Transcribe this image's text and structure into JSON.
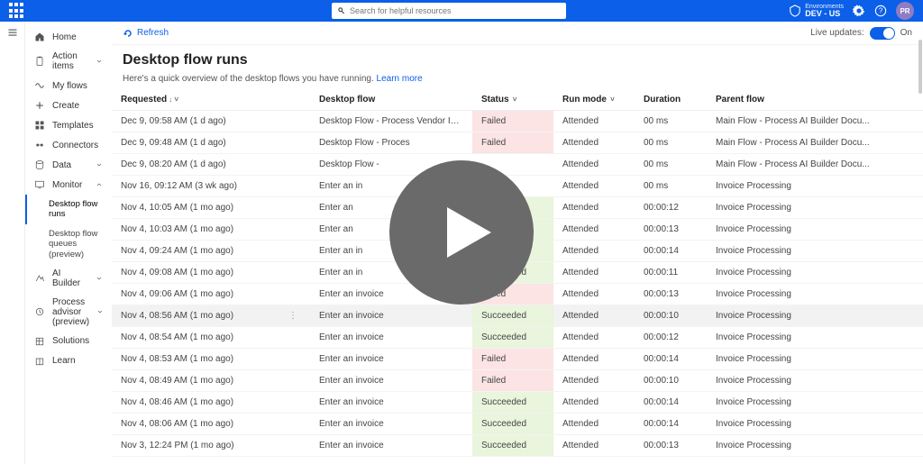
{
  "banner": {
    "search_placeholder": "Search for helpful resources",
    "env_label": "Environments",
    "env_name": "DEV - US",
    "avatar_initials": "PR"
  },
  "sidebar": {
    "items": [
      {
        "label": "Home",
        "icon": "home"
      },
      {
        "label": "Action items",
        "icon": "clipboard",
        "expandable": true
      },
      {
        "label": "My flows",
        "icon": "flows"
      },
      {
        "label": "Create",
        "icon": "plus"
      },
      {
        "label": "Templates",
        "icon": "templates"
      },
      {
        "label": "Connectors",
        "icon": "connectors"
      },
      {
        "label": "Data",
        "icon": "data",
        "expandable": true
      },
      {
        "label": "Monitor",
        "icon": "monitor",
        "expandable": true,
        "expanded": true,
        "subs": [
          {
            "label": "Desktop flow runs",
            "active": true
          },
          {
            "label": "Desktop flow queues (preview)"
          }
        ]
      },
      {
        "label": "AI Builder",
        "icon": "ai",
        "expandable": true
      },
      {
        "label": "Process advisor (preview)",
        "icon": "process",
        "expandable": true
      },
      {
        "label": "Solutions",
        "icon": "solutions"
      },
      {
        "label": "Learn",
        "icon": "learn"
      }
    ]
  },
  "toolbar": {
    "refresh_label": "Refresh",
    "live_updates_label": "Live updates:",
    "live_state": "On"
  },
  "page": {
    "title": "Desktop flow runs",
    "subtitle_prefix": "Here's a quick overview of the desktop flows you have running. ",
    "learn_more": "Learn more"
  },
  "table": {
    "columns": {
      "requested": "Requested",
      "desktop_flow": "Desktop flow",
      "status": "Status",
      "run_mode": "Run mode",
      "duration": "Duration",
      "parent_flow": "Parent flow"
    },
    "rows": [
      {
        "requested": "Dec 9, 09:58 AM (1 d ago)",
        "flow": "Desktop Flow - Process Vendor Invoices",
        "status": "Failed",
        "mode": "Attended",
        "duration": "00 ms",
        "parent": "Main Flow - Process AI Builder Docu..."
      },
      {
        "requested": "Dec 9, 09:48 AM (1 d ago)",
        "flow": "Desktop Flow - Proces",
        "status": "Failed",
        "mode": "Attended",
        "duration": "00 ms",
        "parent": "Main Flow - Process AI Builder Docu..."
      },
      {
        "requested": "Dec 9, 08:20 AM (1 d ago)",
        "flow": "Desktop Flow -",
        "status": "",
        "mode": "Attended",
        "duration": "00 ms",
        "parent": "Main Flow - Process AI Builder Docu..."
      },
      {
        "requested": "Nov 16, 09:12 AM (3 wk ago)",
        "flow": "Enter an in",
        "status": "",
        "mode": "Attended",
        "duration": "00 ms",
        "parent": "Invoice Processing"
      },
      {
        "requested": "Nov 4, 10:05 AM (1 mo ago)",
        "flow": "Enter an",
        "status": "Succeeded",
        "mode": "Attended",
        "duration": "00:00:12",
        "parent": "Invoice Processing"
      },
      {
        "requested": "Nov 4, 10:03 AM (1 mo ago)",
        "flow": "Enter an",
        "status": "Succeeded",
        "mode": "Attended",
        "duration": "00:00:13",
        "parent": "Invoice Processing"
      },
      {
        "requested": "Nov 4, 09:24 AM (1 mo ago)",
        "flow": "Enter an in",
        "status": "Succeeded",
        "mode": "Attended",
        "duration": "00:00:14",
        "parent": "Invoice Processing"
      },
      {
        "requested": "Nov 4, 09:08 AM (1 mo ago)",
        "flow": "Enter an in",
        "status": "Succeeded",
        "mode": "Attended",
        "duration": "00:00:11",
        "parent": "Invoice Processing"
      },
      {
        "requested": "Nov 4, 09:06 AM (1 mo ago)",
        "flow": "Enter an invoice",
        "status": "Failed",
        "mode": "Attended",
        "duration": "00:00:13",
        "parent": "Invoice Processing"
      },
      {
        "requested": "Nov 4, 08:56 AM (1 mo ago)",
        "flow": "Enter an invoice",
        "status": "Succeeded",
        "mode": "Attended",
        "duration": "00:00:10",
        "parent": "Invoice Processing",
        "hovered": true
      },
      {
        "requested": "Nov 4, 08:54 AM (1 mo ago)",
        "flow": "Enter an invoice",
        "status": "Succeeded",
        "mode": "Attended",
        "duration": "00:00:12",
        "parent": "Invoice Processing"
      },
      {
        "requested": "Nov 4, 08:53 AM (1 mo ago)",
        "flow": "Enter an invoice",
        "status": "Failed",
        "mode": "Attended",
        "duration": "00:00:14",
        "parent": "Invoice Processing"
      },
      {
        "requested": "Nov 4, 08:49 AM (1 mo ago)",
        "flow": "Enter an invoice",
        "status": "Failed",
        "mode": "Attended",
        "duration": "00:00:10",
        "parent": "Invoice Processing"
      },
      {
        "requested": "Nov 4, 08:46 AM (1 mo ago)",
        "flow": "Enter an invoice",
        "status": "Succeeded",
        "mode": "Attended",
        "duration": "00:00:14",
        "parent": "Invoice Processing"
      },
      {
        "requested": "Nov 4, 08:06 AM (1 mo ago)",
        "flow": "Enter an invoice",
        "status": "Succeeded",
        "mode": "Attended",
        "duration": "00:00:14",
        "parent": "Invoice Processing"
      },
      {
        "requested": "Nov 3, 12:24 PM (1 mo ago)",
        "flow": "Enter an invoice",
        "status": "Succeeded",
        "mode": "Attended",
        "duration": "00:00:13",
        "parent": "Invoice Processing"
      }
    ]
  },
  "colors": {
    "brand": "#0b5fe8",
    "fail_bg": "#fce4e4",
    "success_bg": "#e9f5dc",
    "overlay": "#6a6a6a"
  }
}
